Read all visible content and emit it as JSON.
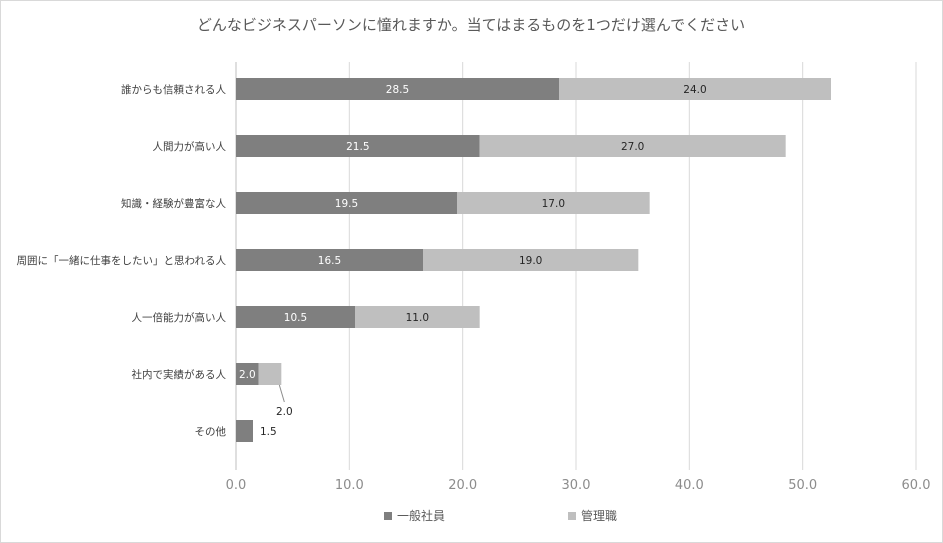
{
  "chart_data": {
    "type": "bar",
    "orientation": "horizontal",
    "stacked": true,
    "title": "どんなビジネスパーソンに憧れますか。当てはまるものを1つだけ選んでください",
    "categories": [
      "誰からも信頼される人",
      "人間力が高い人",
      "知識・経験が豊富な人",
      "周囲に「一緒に仕事をしたい」と思われる人",
      "人一倍能力が高い人",
      "社内で実績がある人",
      "その他"
    ],
    "series": [
      {
        "name": "一般社員",
        "color": "#7f7f7f",
        "values": [
          28.5,
          21.5,
          19.5,
          16.5,
          10.5,
          2.0,
          1.5
        ],
        "labels": [
          "28.5",
          "21.5",
          "19.5",
          "16.5",
          "10.5",
          "2.0",
          "1.5"
        ]
      },
      {
        "name": "管理職",
        "color": "#bfbfbf",
        "values": [
          24.0,
          27.0,
          17.0,
          19.0,
          11.0,
          2.0,
          0
        ],
        "labels": [
          "24.0",
          "27.0",
          "17.0",
          "19.0",
          "11.0",
          "2.0",
          ""
        ]
      }
    ],
    "xlim": [
      0,
      60
    ],
    "xticks": [
      "0.0",
      "10.0",
      "20.0",
      "30.0",
      "40.0",
      "50.0",
      "60.0"
    ],
    "xtick_values": [
      0,
      10,
      20,
      30,
      40,
      50,
      60
    ],
    "grid": "vertical",
    "legend": "bottom"
  }
}
